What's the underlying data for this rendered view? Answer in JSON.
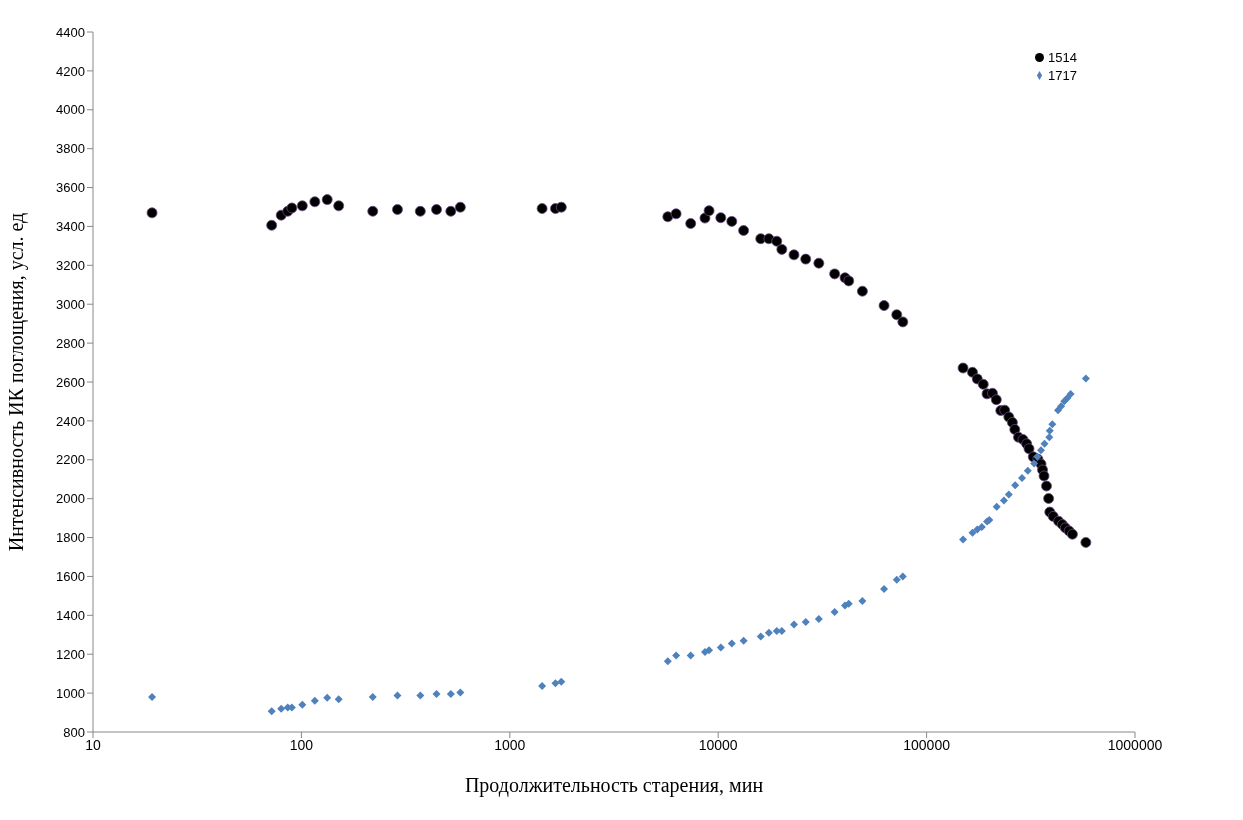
{
  "chart_data": {
    "type": "scatter",
    "xlabel": "Продолжительность старения, мин",
    "ylabel": "Интенсивность ИК поглощения, усл. ед",
    "log": "x",
    "xlim": [
      10,
      1000000
    ],
    "xticks": [
      10,
      100,
      1000,
      10000,
      100000,
      1000000
    ],
    "ylim": [
      800,
      4400
    ],
    "yticks": [
      800,
      1000,
      1200,
      1400,
      1600,
      1800,
      2000,
      2200,
      2400,
      2600,
      2800,
      3000,
      3200,
      3400,
      3600,
      3800,
      4000,
      4200,
      4400
    ],
    "grid": false,
    "legend": "top right",
    "series": [
      {
        "name": "1514",
        "color": "#000000",
        "marker": "circle",
        "x": [
          19.2,
          72,
          80,
          86,
          90,
          101,
          116,
          133,
          151,
          220,
          289,
          372,
          445,
          521,
          579,
          1429,
          1656,
          1767,
          5730,
          6280,
          7380,
          8640,
          9040,
          10290,
          11620,
          13240,
          16000,
          17500,
          19100,
          20200,
          23100,
          26300,
          30400,
          36200,
          40600,
          42300,
          49200,
          62500,
          71900,
          76900,
          149600,
          166000,
          175000,
          187000,
          195000,
          207000,
          216000,
          227000,
          237000,
          248000,
          258000,
          265000,
          276000,
          290000,
          302000,
          310000,
          325000,
          342000,
          354000,
          360000,
          366000,
          376000,
          385000,
          390000,
          405000,
          430000,
          448000,
          463000,
          483000,
          501000,
          581000
        ],
        "values": [
          3470,
          3406,
          3458,
          3478,
          3495,
          3506,
          3527,
          3538,
          3506,
          3478,
          3487,
          3478,
          3487,
          3478,
          3499,
          3492,
          3492,
          3499,
          3450,
          3465,
          3415,
          3443,
          3481,
          3445,
          3426,
          3379,
          3337,
          3337,
          3324,
          3282,
          3254,
          3232,
          3211,
          3156,
          3136,
          3120,
          3067,
          2993,
          2946,
          2909,
          2672,
          2650,
          2616,
          2588,
          2539,
          2542,
          2509,
          2453,
          2455,
          2420,
          2392,
          2356,
          2316,
          2304,
          2282,
          2257,
          2215,
          2203,
          2178,
          2148,
          2117,
          2065,
          2001,
          1931,
          1909,
          1884,
          1867,
          1850,
          1834,
          1817,
          1775
        ]
      },
      {
        "name": "1717",
        "color": "#4f81bd",
        "marker": "diamond",
        "x": [
          19.2,
          72,
          80,
          86,
          90,
          101,
          116,
          133,
          151,
          220,
          289,
          372,
          445,
          521,
          579,
          1429,
          1656,
          1767,
          5730,
          6280,
          7380,
          8640,
          9040,
          10290,
          11620,
          13240,
          16000,
          17500,
          19100,
          20200,
          23100,
          26300,
          30400,
          36200,
          40600,
          42300,
          49200,
          62500,
          71900,
          76900,
          149600,
          166000,
          175000,
          184000,
          195000,
          200000,
          217000,
          235000,
          248000,
          266000,
          287000,
          306000,
          328000,
          340000,
          354000,
          368000,
          388000,
          390000,
          401000,
          427000,
          442000,
          458000,
          474000,
          491000,
          581000
        ],
        "values": [
          980,
          907,
          919,
          926,
          926,
          940,
          961,
          976,
          968,
          980,
          988,
          988,
          995,
          995,
          1003,
          1037,
          1051,
          1059,
          1164,
          1193,
          1193,
          1212,
          1220,
          1235,
          1255,
          1269,
          1291,
          1311,
          1319,
          1319,
          1353,
          1366,
          1381,
          1417,
          1450,
          1459,
          1474,
          1536,
          1583,
          1600,
          1790,
          1825,
          1842,
          1854,
          1882,
          1890,
          1958,
          1991,
          2021,
          2069,
          2106,
          2143,
          2181,
          2215,
          2249,
          2282,
          2316,
          2349,
          2383,
          2455,
          2475,
          2501,
          2518,
          2538,
          2618
        ]
      }
    ]
  }
}
